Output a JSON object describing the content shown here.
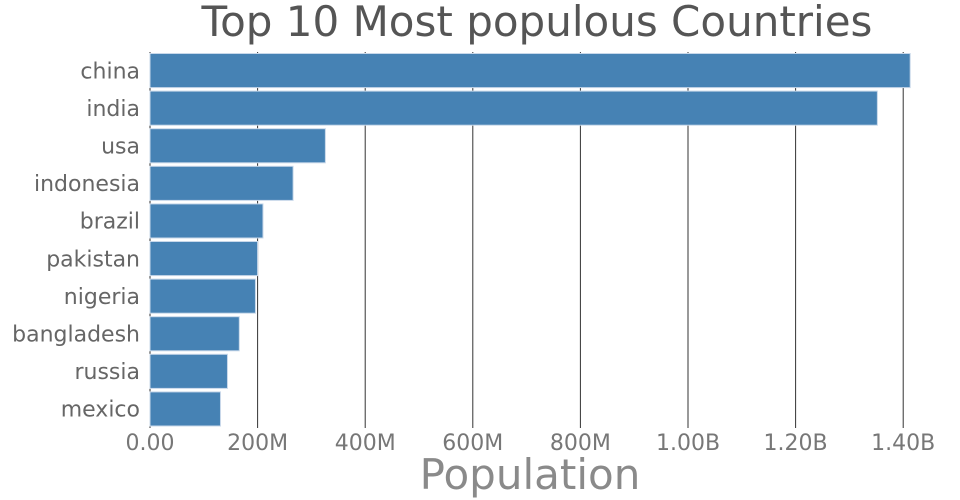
{
  "chart_data": {
    "type": "bar",
    "orientation": "horizontal",
    "title": "Top 10 Most populous Countries",
    "xlabel": "Population",
    "ylabel": "",
    "categories": [
      "china",
      "india",
      "usa",
      "indonesia",
      "brazil",
      "pakistan",
      "nigeria",
      "bangladesh",
      "russia",
      "mexico"
    ],
    "values": [
      1413000000,
      1352000000,
      326000000,
      266000000,
      210000000,
      200000000,
      196000000,
      166000000,
      144000000,
      131000000
    ],
    "xlim": [
      0,
      1400000000
    ],
    "xticks": [
      0,
      200000000,
      400000000,
      600000000,
      800000000,
      1000000000,
      1200000000,
      1400000000
    ],
    "xtick_labels": [
      "0.00",
      "200M",
      "400M",
      "600M",
      "800M",
      "1.00B",
      "1.20B",
      "1.40B"
    ],
    "grid": "vertical",
    "bar_color": "#4682b4"
  }
}
